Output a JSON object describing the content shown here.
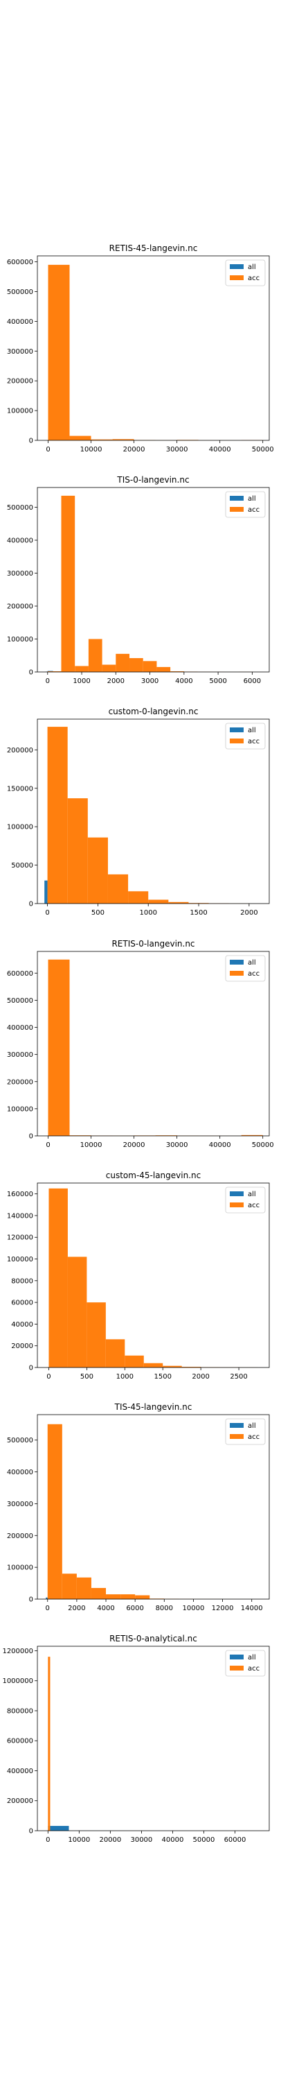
{
  "chart_data": [
    {
      "type": "bar",
      "title": "RETIS-45-langevin.nc",
      "xlim": [
        -2500,
        51500
      ],
      "ylim": [
        0,
        620000
      ],
      "xticks": [
        0,
        10000,
        20000,
        30000,
        40000,
        50000
      ],
      "yticks": [
        0,
        100000,
        200000,
        300000,
        400000,
        500000,
        600000
      ],
      "legend_placement": "top-right",
      "series": [
        {
          "name": "all",
          "color": "#1f77b4",
          "bins": []
        },
        {
          "name": "acc",
          "color": "#ff7f0e",
          "bins": [
            [
              0,
              5000,
              590000
            ],
            [
              5000,
              10000,
              15000
            ],
            [
              10000,
              15000,
              3000
            ],
            [
              15000,
              20000,
              4000
            ],
            [
              20000,
              25000,
              1000
            ],
            [
              25000,
              30000,
              500
            ],
            [
              30000,
              35000,
              1500
            ],
            [
              35000,
              40000,
              300
            ],
            [
              40000,
              45000,
              200
            ],
            [
              45000,
              50000,
              800
            ]
          ]
        }
      ]
    },
    {
      "type": "bar",
      "title": "TIS-0-langevin.nc",
      "xlim": [
        -300,
        6500
      ],
      "ylim": [
        0,
        560000
      ],
      "xticks": [
        0,
        1000,
        2000,
        3000,
        4000,
        5000,
        6000
      ],
      "yticks": [
        0,
        100000,
        200000,
        300000,
        400000,
        500000
      ],
      "legend_placement": "top-right",
      "series": [
        {
          "name": "all",
          "color": "#1f77b4",
          "bins": [
            [
              0,
              160,
              3000
            ],
            [
              -60,
              0,
              1000
            ]
          ]
        },
        {
          "name": "acc",
          "color": "#ff7f0e",
          "bins": [
            [
              0,
              400,
              2000
            ],
            [
              400,
              800,
              535000
            ],
            [
              800,
              1200,
              18000
            ],
            [
              1200,
              1600,
              100000
            ],
            [
              1600,
              2000,
              22000
            ],
            [
              2000,
              2400,
              55000
            ],
            [
              2400,
              2800,
              42000
            ],
            [
              2800,
              3200,
              33000
            ],
            [
              3200,
              3600,
              15000
            ],
            [
              3600,
              4000,
              2000
            ],
            [
              4000,
              4400,
              1000
            ],
            [
              4400,
              4800,
              400
            ],
            [
              4800,
              5200,
              200
            ],
            [
              5200,
              5600,
              100
            ],
            [
              5600,
              6000,
              300
            ]
          ]
        }
      ]
    },
    {
      "type": "bar",
      "title": "custom-0-langevin.nc",
      "xlim": [
        -100,
        2200
      ],
      "ylim": [
        0,
        240000
      ],
      "xticks": [
        0,
        500,
        1000,
        1500,
        2000
      ],
      "yticks": [
        0,
        50000,
        100000,
        150000,
        200000
      ],
      "legend_placement": "top-right",
      "series": [
        {
          "name": "all",
          "color": "#1f77b4",
          "bins": [
            [
              -30,
              0,
              30000
            ]
          ]
        },
        {
          "name": "acc",
          "color": "#ff7f0e",
          "bins": [
            [
              0,
              200,
              230000
            ],
            [
              200,
              400,
              137000
            ],
            [
              400,
              600,
              86000
            ],
            [
              600,
              800,
              38000
            ],
            [
              800,
              1000,
              16000
            ],
            [
              1000,
              1200,
              5000
            ],
            [
              1200,
              1400,
              2000
            ],
            [
              1400,
              1600,
              700
            ],
            [
              1600,
              1800,
              300
            ],
            [
              1800,
              2000,
              100
            ]
          ]
        }
      ]
    },
    {
      "type": "bar",
      "title": "RETIS-0-langevin.nc",
      "xlim": [
        -2500,
        51500
      ],
      "ylim": [
        0,
        680000
      ],
      "xticks": [
        0,
        10000,
        20000,
        30000,
        40000,
        50000
      ],
      "yticks": [
        0,
        100000,
        200000,
        300000,
        400000,
        500000,
        600000
      ],
      "legend_placement": "top-right",
      "series": [
        {
          "name": "all",
          "color": "#1f77b4",
          "bins": []
        },
        {
          "name": "acc",
          "color": "#ff7f0e",
          "bins": [
            [
              0,
              5000,
              650000
            ],
            [
              5000,
              10000,
              2000
            ],
            [
              10000,
              15000,
              1000
            ],
            [
              15000,
              20000,
              800
            ],
            [
              20000,
              25000,
              1500
            ],
            [
              25000,
              30000,
              2000
            ],
            [
              30000,
              35000,
              800
            ],
            [
              35000,
              40000,
              600
            ],
            [
              40000,
              45000,
              300
            ],
            [
              45000,
              50000,
              3000
            ]
          ]
        }
      ]
    },
    {
      "type": "bar",
      "title": "custom-45-langevin.nc",
      "xlim": [
        -150,
        2900
      ],
      "ylim": [
        0,
        170000
      ],
      "xticks": [
        0,
        500,
        1000,
        1500,
        2000,
        2500
      ],
      "yticks": [
        0,
        20000,
        40000,
        60000,
        80000,
        100000,
        120000,
        140000,
        160000
      ],
      "legend_placement": "top-right",
      "series": [
        {
          "name": "all",
          "color": "#1f77b4",
          "bins": []
        },
        {
          "name": "acc",
          "color": "#ff7f0e",
          "bins": [
            [
              0,
              250,
              165000
            ],
            [
              250,
              500,
              102000
            ],
            [
              500,
              750,
              60000
            ],
            [
              750,
              1000,
              26000
            ],
            [
              1000,
              1250,
              11000
            ],
            [
              1250,
              1500,
              4000
            ],
            [
              1500,
              1750,
              1500
            ],
            [
              1750,
              2000,
              600
            ],
            [
              2000,
              2250,
              300
            ],
            [
              2250,
              2500,
              150
            ],
            [
              2500,
              2750,
              80
            ]
          ]
        }
      ]
    },
    {
      "type": "bar",
      "title": "TIS-45-langevin.nc",
      "xlim": [
        -700,
        15200
      ],
      "ylim": [
        0,
        580000
      ],
      "xticks": [
        0,
        2000,
        4000,
        6000,
        8000,
        10000,
        12000,
        14000
      ],
      "yticks": [
        0,
        100000,
        200000,
        300000,
        400000,
        500000
      ],
      "legend_placement": "top-right",
      "series": [
        {
          "name": "all",
          "color": "#1f77b4",
          "bins": [
            [
              -120,
              0,
              5000
            ]
          ]
        },
        {
          "name": "acc",
          "color": "#ff7f0e",
          "bins": [
            [
              0,
              1000,
              550000
            ],
            [
              1000,
              2000,
              80000
            ],
            [
              2000,
              3000,
              68000
            ],
            [
              3000,
              4000,
              35000
            ],
            [
              4000,
              5000,
              15000
            ],
            [
              5000,
              6000,
              15000
            ],
            [
              6000,
              7000,
              12000
            ],
            [
              7000,
              8000,
              1500
            ],
            [
              8000,
              9000,
              800
            ],
            [
              9000,
              10000,
              400
            ],
            [
              10000,
              11000,
              200
            ],
            [
              11000,
              12000,
              200
            ],
            [
              12000,
              13000,
              100
            ],
            [
              13000,
              14000,
              100
            ]
          ]
        }
      ]
    },
    {
      "type": "bar",
      "title": "RETIS-0-analytical.nc",
      "xlim": [
        -3400,
        71000
      ],
      "ylim": [
        0,
        1230000
      ],
      "xticks": [
        0,
        10000,
        20000,
        30000,
        40000,
        50000,
        60000
      ],
      "yticks": [
        0,
        200000,
        400000,
        600000,
        800000,
        1000000,
        1200000
      ],
      "legend_placement": "top-right",
      "series": [
        {
          "name": "all",
          "color": "#1f77b4",
          "bins": [
            [
              0,
              6700,
              32000
            ],
            [
              6700,
              13400,
              600
            ],
            [
              13400,
              20100,
              300
            ],
            [
              20100,
              26800,
              200
            ],
            [
              26800,
              33500,
              150
            ],
            [
              33500,
              40200,
              100
            ]
          ]
        },
        {
          "name": "acc",
          "color": "#ff7f0e",
          "bins": [
            [
              0,
              700,
              1160000
            ]
          ]
        }
      ]
    }
  ]
}
